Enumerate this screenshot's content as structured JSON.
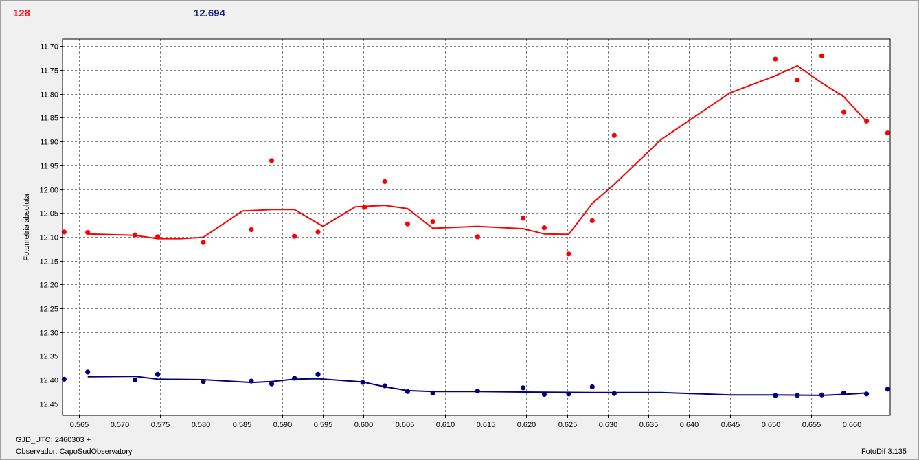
{
  "header": {
    "left_value": "128",
    "right_value": "12.694"
  },
  "footer": {
    "gjd": "GJD_UTC: 2460303 +",
    "observer": "Observador: CapoSudObservatory",
    "app": "FotoDif 3.135"
  },
  "colors": {
    "variable": "#ff0000",
    "comparison": "#000080",
    "grid": "#808080",
    "plot_bg": "#ffffff"
  },
  "chart_data": {
    "type": "scatter",
    "title": "",
    "xlabel": "",
    "ylabel": "Fotometria absoluta",
    "xlim": [
      0.563,
      0.6647
    ],
    "ylim": [
      11.685,
      12.475
    ],
    "y_inverted": true,
    "grid": true,
    "x_ticks": [
      "0.565",
      "0.570",
      "0.575",
      "0.580",
      "0.585",
      "0.590",
      "0.595",
      "0.600",
      "0.605",
      "0.610",
      "0.615",
      "0.620",
      "0.625",
      "0.630",
      "0.635",
      "0.640",
      "0.645",
      "0.650",
      "0.655",
      "0.660"
    ],
    "y_ticks": [
      "11.70",
      "11.75",
      "11.80",
      "11.85",
      "11.90",
      "11.95",
      "12.00",
      "12.05",
      "12.10",
      "12.15",
      "12.20",
      "12.25",
      "12.30",
      "12.35",
      "12.40",
      "12.45"
    ],
    "series": [
      {
        "color": "#ff0000",
        "points": [
          [
            0.5632,
            12.09
          ],
          [
            0.5661,
            12.091
          ],
          [
            0.5719,
            12.096
          ],
          [
            0.5747,
            12.1
          ],
          [
            0.5803,
            12.112
          ],
          [
            0.5862,
            12.085
          ],
          [
            0.5887,
            11.94
          ],
          [
            0.5915,
            12.099
          ],
          [
            0.5944,
            12.09
          ],
          [
            0.6001,
            12.038
          ],
          [
            0.6026,
            11.984
          ],
          [
            0.6054,
            12.073
          ],
          [
            0.6085,
            12.068
          ],
          [
            0.614,
            12.1
          ],
          [
            0.6196,
            12.061
          ],
          [
            0.6222,
            12.081
          ],
          [
            0.6252,
            12.136
          ],
          [
            0.6281,
            12.066
          ],
          [
            0.6308,
            11.887
          ],
          [
            0.6506,
            11.727
          ],
          [
            0.6533,
            11.771
          ],
          [
            0.6563,
            11.72
          ],
          [
            0.659,
            11.838
          ],
          [
            0.6618,
            11.857
          ],
          [
            0.6644,
            11.882
          ]
        ],
        "trend": [
          [
            0.5661,
            12.094
          ],
          [
            0.5719,
            12.097
          ],
          [
            0.5747,
            12.104
          ],
          [
            0.5775,
            12.104
          ],
          [
            0.5803,
            12.101
          ],
          [
            0.5851,
            12.046
          ],
          [
            0.5887,
            12.043
          ],
          [
            0.5915,
            12.043
          ],
          [
            0.595,
            12.078
          ],
          [
            0.599,
            12.037
          ],
          [
            0.6026,
            12.034
          ],
          [
            0.6054,
            12.041
          ],
          [
            0.607,
            12.062
          ],
          [
            0.6085,
            12.082
          ],
          [
            0.614,
            12.078
          ],
          [
            0.6196,
            12.083
          ],
          [
            0.6222,
            12.094
          ],
          [
            0.6252,
            12.095
          ],
          [
            0.6281,
            12.03
          ],
          [
            0.6308,
            11.99
          ],
          [
            0.6366,
            11.895
          ],
          [
            0.645,
            11.798
          ],
          [
            0.6506,
            11.762
          ],
          [
            0.6533,
            11.741
          ],
          [
            0.6563,
            11.777
          ],
          [
            0.659,
            11.806
          ],
          [
            0.6618,
            11.858
          ]
        ]
      },
      {
        "color": "#000080",
        "points": [
          [
            0.5632,
            12.399
          ],
          [
            0.5661,
            12.384
          ],
          [
            0.5719,
            12.401
          ],
          [
            0.5747,
            12.389
          ],
          [
            0.5803,
            12.404
          ],
          [
            0.5862,
            12.403
          ],
          [
            0.5887,
            12.409
          ],
          [
            0.5915,
            12.397
          ],
          [
            0.5944,
            12.389
          ],
          [
            0.5999,
            12.406
          ],
          [
            0.6026,
            12.413
          ],
          [
            0.6054,
            12.425
          ],
          [
            0.6085,
            12.428
          ],
          [
            0.614,
            12.424
          ],
          [
            0.6196,
            12.417
          ],
          [
            0.6222,
            12.431
          ],
          [
            0.6252,
            12.43
          ],
          [
            0.6281,
            12.415
          ],
          [
            0.6308,
            12.429
          ],
          [
            0.6506,
            12.433
          ],
          [
            0.6533,
            12.433
          ],
          [
            0.6563,
            12.432
          ],
          [
            0.659,
            12.428
          ],
          [
            0.6618,
            12.43
          ],
          [
            0.6644,
            12.42
          ]
        ],
        "trend": [
          [
            0.5661,
            12.394
          ],
          [
            0.5719,
            12.393
          ],
          [
            0.5747,
            12.399
          ],
          [
            0.5803,
            12.4
          ],
          [
            0.5862,
            12.406
          ],
          [
            0.5887,
            12.404
          ],
          [
            0.5915,
            12.399
          ],
          [
            0.5944,
            12.398
          ],
          [
            0.5999,
            12.405
          ],
          [
            0.6026,
            12.415
          ],
          [
            0.6054,
            12.423
          ],
          [
            0.6085,
            12.425
          ],
          [
            0.614,
            12.425
          ],
          [
            0.6196,
            12.426
          ],
          [
            0.6281,
            12.427
          ],
          [
            0.6366,
            12.427
          ],
          [
            0.645,
            12.432
          ],
          [
            0.6506,
            12.432
          ],
          [
            0.6563,
            12.433
          ],
          [
            0.659,
            12.431
          ],
          [
            0.6618,
            12.428
          ]
        ]
      }
    ]
  }
}
